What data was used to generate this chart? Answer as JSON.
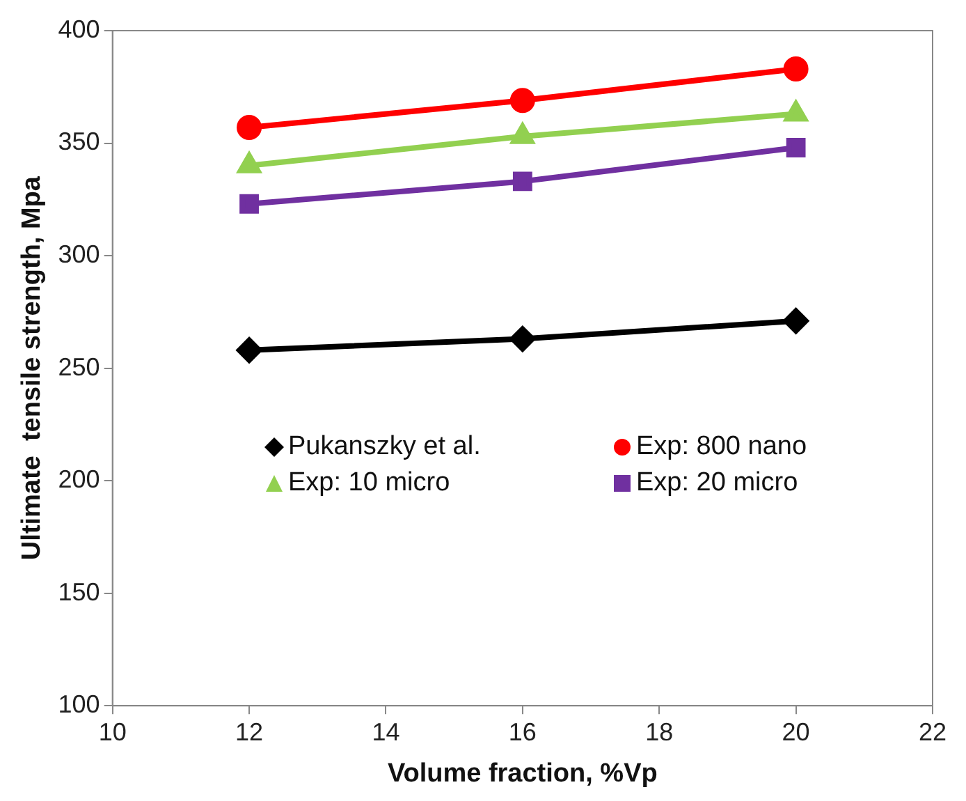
{
  "chart_data": {
    "type": "line",
    "xlabel": "Volume fraction, %Vp",
    "ylabel": "Ultimate  tensile strength, Mpa",
    "x": [
      12,
      16,
      20
    ],
    "series": [
      {
        "name": "Pukanszky et al.",
        "color": "#000000",
        "marker": "diamond",
        "values": [
          258,
          263,
          271
        ]
      },
      {
        "name": "Exp: 800 nano",
        "color": "#ff0000",
        "marker": "circle",
        "values": [
          357,
          369,
          383
        ]
      },
      {
        "name": "Exp: 10 micro",
        "color": "#92d050",
        "marker": "triangle",
        "values": [
          340,
          353,
          363
        ]
      },
      {
        "name": "Exp: 20 micro",
        "color": "#7030a0",
        "marker": "square",
        "values": [
          323,
          333,
          348
        ]
      }
    ],
    "xlim": [
      10,
      22
    ],
    "xticks": [
      10,
      12,
      14,
      16,
      18,
      20,
      22
    ],
    "ylim": [
      100,
      400
    ],
    "yticks": [
      100,
      150,
      200,
      250,
      300,
      350,
      400
    ],
    "grid": false,
    "legend": "center"
  }
}
